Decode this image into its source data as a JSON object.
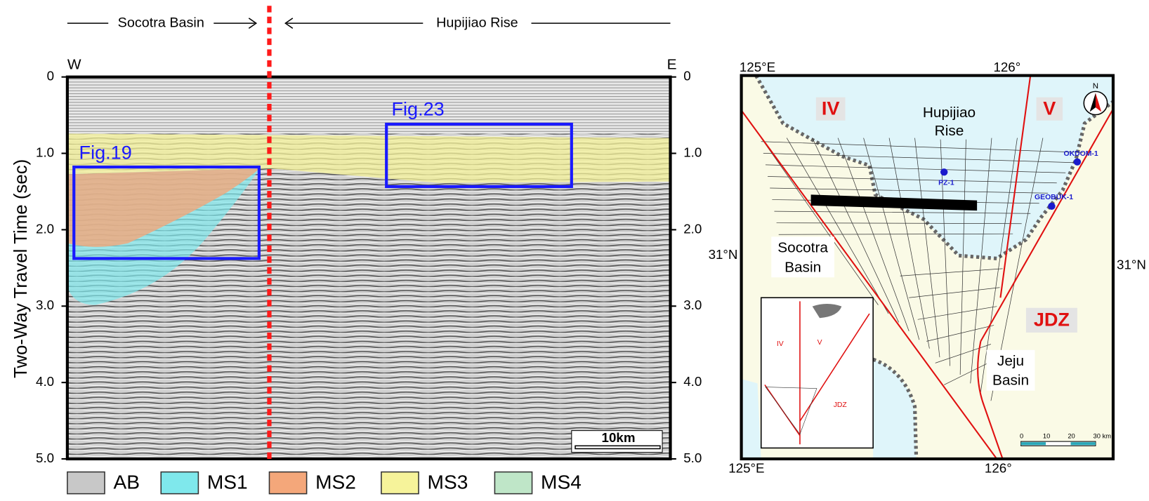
{
  "section": {
    "header_left": "Socotra Basin",
    "header_right": "Hupijiao Rise",
    "west": "W",
    "east": "E",
    "y_axis_label": "Two-Way Travel Time (sec)",
    "yticks_left": [
      "0",
      "1.0",
      "2.0",
      "3.0",
      "4.0",
      "5.0"
    ],
    "yticks_right": [
      "0",
      "1.0",
      "2.0",
      "3.0",
      "4.0",
      "5.0"
    ],
    "boxes": [
      "Fig.19",
      "Fig.23"
    ],
    "scale_bar": "10km"
  },
  "legend": [
    {
      "label": "AB",
      "color": "#c8c8c8"
    },
    {
      "label": "MS1",
      "color": "#7fe8ec"
    },
    {
      "label": "MS2",
      "color": "#f4a77a"
    },
    {
      "label": "MS3",
      "color": "#f6f39a"
    },
    {
      "label": "MS4",
      "color": "#bfe6c8"
    }
  ],
  "map": {
    "lon_top": [
      "125°E",
      "126°"
    ],
    "lon_bottom": [
      "125°E",
      "126°"
    ],
    "lat_left": "31°N",
    "lat_right": "31°N",
    "regions": [
      "IV",
      "V",
      "JDZ"
    ],
    "areas": [
      [
        "Hupijiao",
        "Rise"
      ],
      [
        "Socotra",
        "Basin"
      ],
      [
        "Jeju",
        "Basin"
      ]
    ],
    "wells": [
      "PZ-1",
      "OKDOM-1",
      "GEOBUK-1"
    ],
    "north": "N",
    "scale_ticks": [
      "0",
      "10",
      "20",
      "30 km"
    ],
    "inset_regions": [
      "IV",
      "V",
      "JDZ"
    ]
  }
}
